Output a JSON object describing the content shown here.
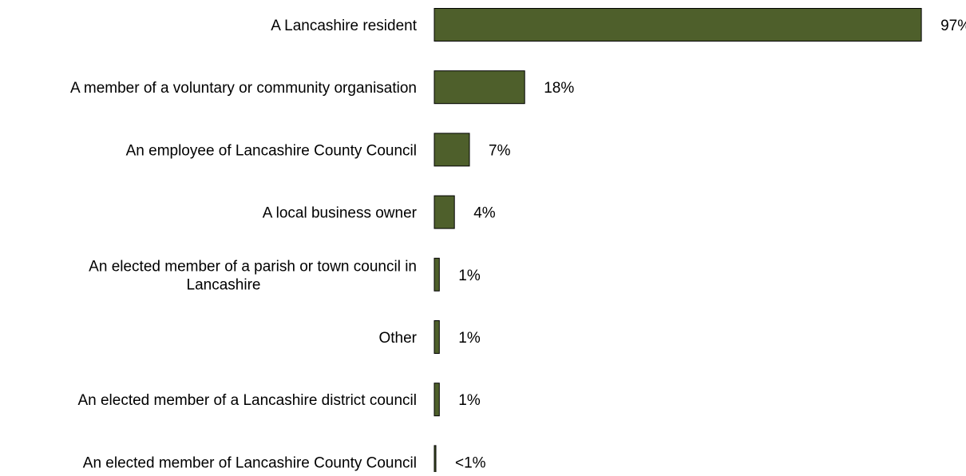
{
  "chart_data": {
    "type": "bar",
    "orientation": "horizontal",
    "title": "",
    "xlabel": "",
    "ylabel": "",
    "grid": false,
    "legend": "none",
    "xlim": [
      0,
      100
    ],
    "bar_color": "#4e5f2b",
    "bar_edge_color": "#000000",
    "categories": [
      "A Lancashire resident",
      "A member of a voluntary or community organisation",
      "An employee of Lancashire County Council",
      "A local business owner",
      "An elected member of a parish or town council in Lancashire",
      "Other",
      "An elected member of a Lancashire district council",
      "An elected member of Lancashire County Council"
    ],
    "category_lines": [
      [
        "A Lancashire resident"
      ],
      [
        "A member of a voluntary or community organisation"
      ],
      [
        "An employee of Lancashire County Council"
      ],
      [
        "A local business owner"
      ],
      [
        "An elected member of a parish or town council in",
        "Lancashire"
      ],
      [
        "Other"
      ],
      [
        "An elected member of a Lancashire district council"
      ],
      [
        "An elected member of Lancashire County Council"
      ]
    ],
    "values": [
      97,
      18,
      7,
      4,
      1,
      1,
      1,
      0.3
    ],
    "value_labels": [
      "97%",
      "18%",
      "7%",
      "4%",
      "1%",
      "1%",
      "1%",
      "<1%"
    ]
  }
}
